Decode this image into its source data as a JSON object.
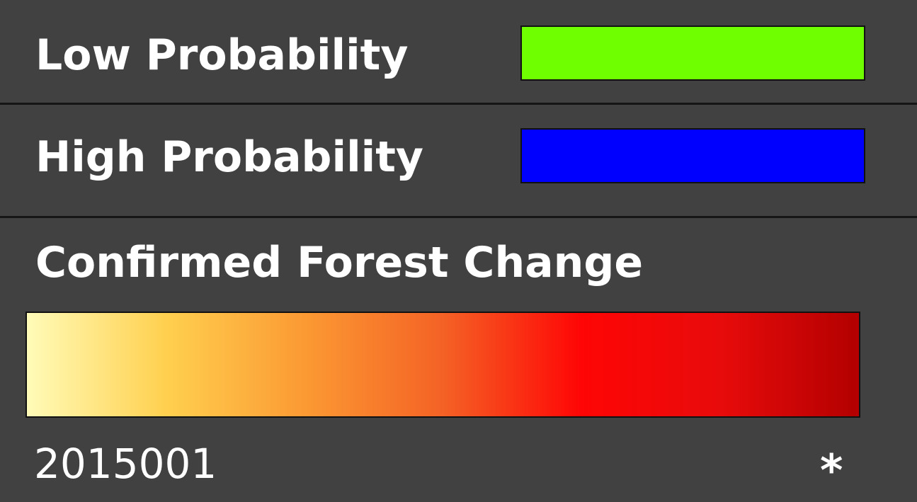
{
  "legend": {
    "low_probability": {
      "label": "Low Probability",
      "color": "#6fff00"
    },
    "high_probability": {
      "label": "High Probability",
      "color": "#0000ff"
    },
    "confirmed_change": {
      "label": "Confirmed Forest Change",
      "ramp_colors": [
        "#fffbb8",
        "#ffd04f",
        "#fb9a33",
        "#f46225",
        "#ff0505",
        "#e80b0b",
        "#b30000"
      ],
      "start_label": "2015001",
      "end_label": "*"
    }
  }
}
